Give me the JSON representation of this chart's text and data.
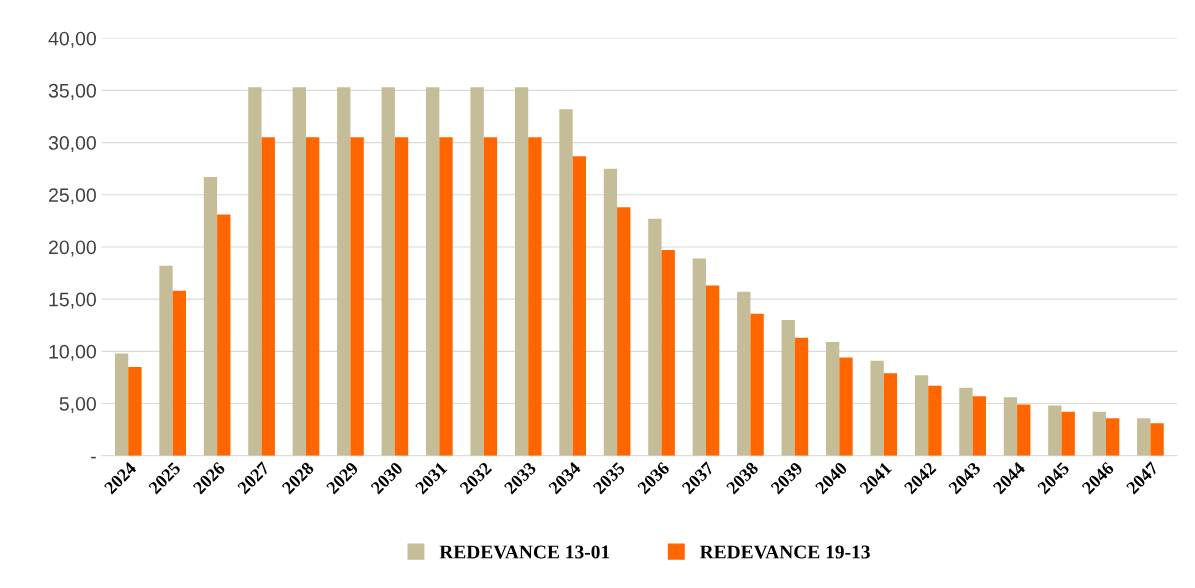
{
  "chart_data": {
    "type": "bar",
    "categories": [
      "2024",
      "2025",
      "2026",
      "2027",
      "2028",
      "2029",
      "2030",
      "2031",
      "2032",
      "2033",
      "2034",
      "2035",
      "2036",
      "2037",
      "2038",
      "2039",
      "2040",
      "2041",
      "2042",
      "2043",
      "2044",
      "2045",
      "2046",
      "2047"
    ],
    "series": [
      {
        "name": "REDEVANCE 13-01",
        "color": "#c4bd97",
        "values": [
          9.8,
          18.2,
          26.7,
          35.3,
          35.3,
          35.3,
          35.3,
          35.3,
          35.3,
          35.3,
          33.2,
          27.5,
          22.7,
          18.9,
          15.7,
          13.0,
          10.9,
          9.1,
          7.7,
          6.5,
          5.6,
          4.8,
          4.2,
          3.6
        ]
      },
      {
        "name": "REDEVANCE 19-13",
        "color": "#ff6600",
        "values": [
          8.5,
          15.8,
          23.1,
          30.5,
          30.5,
          30.5,
          30.5,
          30.5,
          30.5,
          30.5,
          28.7,
          23.8,
          19.7,
          16.3,
          13.6,
          11.3,
          9.4,
          7.9,
          6.7,
          5.7,
          4.9,
          4.2,
          3.6,
          3.1
        ]
      }
    ],
    "ylim": [
      0,
      40
    ],
    "yticks": [
      {
        "value": 0,
        "label": "-"
      },
      {
        "value": 5,
        "label": "5,00"
      },
      {
        "value": 10,
        "label": "10,00"
      },
      {
        "value": 15,
        "label": "15,00"
      },
      {
        "value": 20,
        "label": "20,00"
      },
      {
        "value": 25,
        "label": "25,00"
      },
      {
        "value": 30,
        "label": "30,00"
      },
      {
        "value": 35,
        "label": "35,00"
      },
      {
        "value": 40,
        "label": "40,00"
      }
    ],
    "grid": "y",
    "legend": "bottom"
  }
}
